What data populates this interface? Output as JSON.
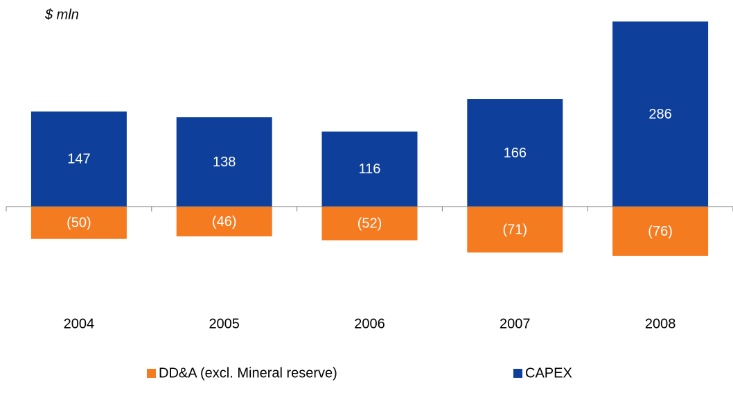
{
  "chart_data": {
    "type": "bar",
    "ylabel": "$ mln",
    "categories": [
      "2004",
      "2005",
      "2006",
      "2007",
      "2008"
    ],
    "series": [
      {
        "name": "DD&A (excl. Mineral reserve)",
        "color": "#f47b20",
        "values": [
          -50,
          -46,
          -52,
          -71,
          -76
        ],
        "value_labels": [
          "(50)",
          "(46)",
          "(52)",
          "(71)",
          "(76)"
        ]
      },
      {
        "name": "CAPEX",
        "color": "#0d3f9b",
        "values": [
          147,
          138,
          116,
          166,
          286
        ]
      }
    ]
  }
}
